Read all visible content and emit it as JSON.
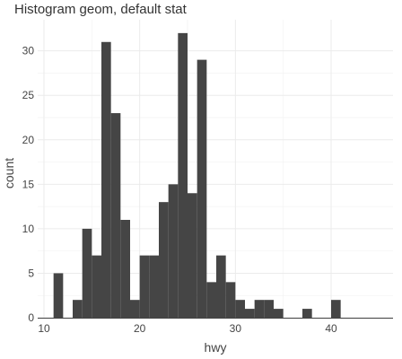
{
  "chart_data": {
    "type": "bar",
    "title": "Histogram geom, default stat",
    "xlabel": "hwy",
    "ylabel": "count",
    "bins": [
      {
        "x": 11.5,
        "count": 5
      },
      {
        "x": 12.5,
        "count": 0
      },
      {
        "x": 13.5,
        "count": 2
      },
      {
        "x": 14.5,
        "count": 10
      },
      {
        "x": 15.5,
        "count": 7
      },
      {
        "x": 16.5,
        "count": 31
      },
      {
        "x": 17.5,
        "count": 23
      },
      {
        "x": 18.5,
        "count": 11
      },
      {
        "x": 19.5,
        "count": 2
      },
      {
        "x": 20.5,
        "count": 7
      },
      {
        "x": 21.5,
        "count": 7
      },
      {
        "x": 22.5,
        "count": 13
      },
      {
        "x": 23.5,
        "count": 15
      },
      {
        "x": 24.5,
        "count": 32
      },
      {
        "x": 25.5,
        "count": 14
      },
      {
        "x": 26.5,
        "count": 29
      },
      {
        "x": 27.5,
        "count": 4
      },
      {
        "x": 28.5,
        "count": 7
      },
      {
        "x": 29.5,
        "count": 4
      },
      {
        "x": 30.5,
        "count": 2
      },
      {
        "x": 31.5,
        "count": 1
      },
      {
        "x": 32.5,
        "count": 2
      },
      {
        "x": 33.5,
        "count": 2
      },
      {
        "x": 34.5,
        "count": 1
      },
      {
        "x": 35.5,
        "count": 0
      },
      {
        "x": 36.5,
        "count": 0
      },
      {
        "x": 37.5,
        "count": 1
      },
      {
        "x": 38.5,
        "count": 0
      },
      {
        "x": 39.5,
        "count": 0
      },
      {
        "x": 40.5,
        "count": 2
      }
    ],
    "bin_width": 1,
    "xlim": [
      10,
      46
    ],
    "ylim": [
      0,
      33.5
    ],
    "x_ticks": [
      10,
      20,
      30,
      40
    ],
    "y_ticks": [
      0,
      5,
      10,
      15,
      20,
      25,
      30
    ],
    "bar_color": "#454545",
    "grid": true
  }
}
